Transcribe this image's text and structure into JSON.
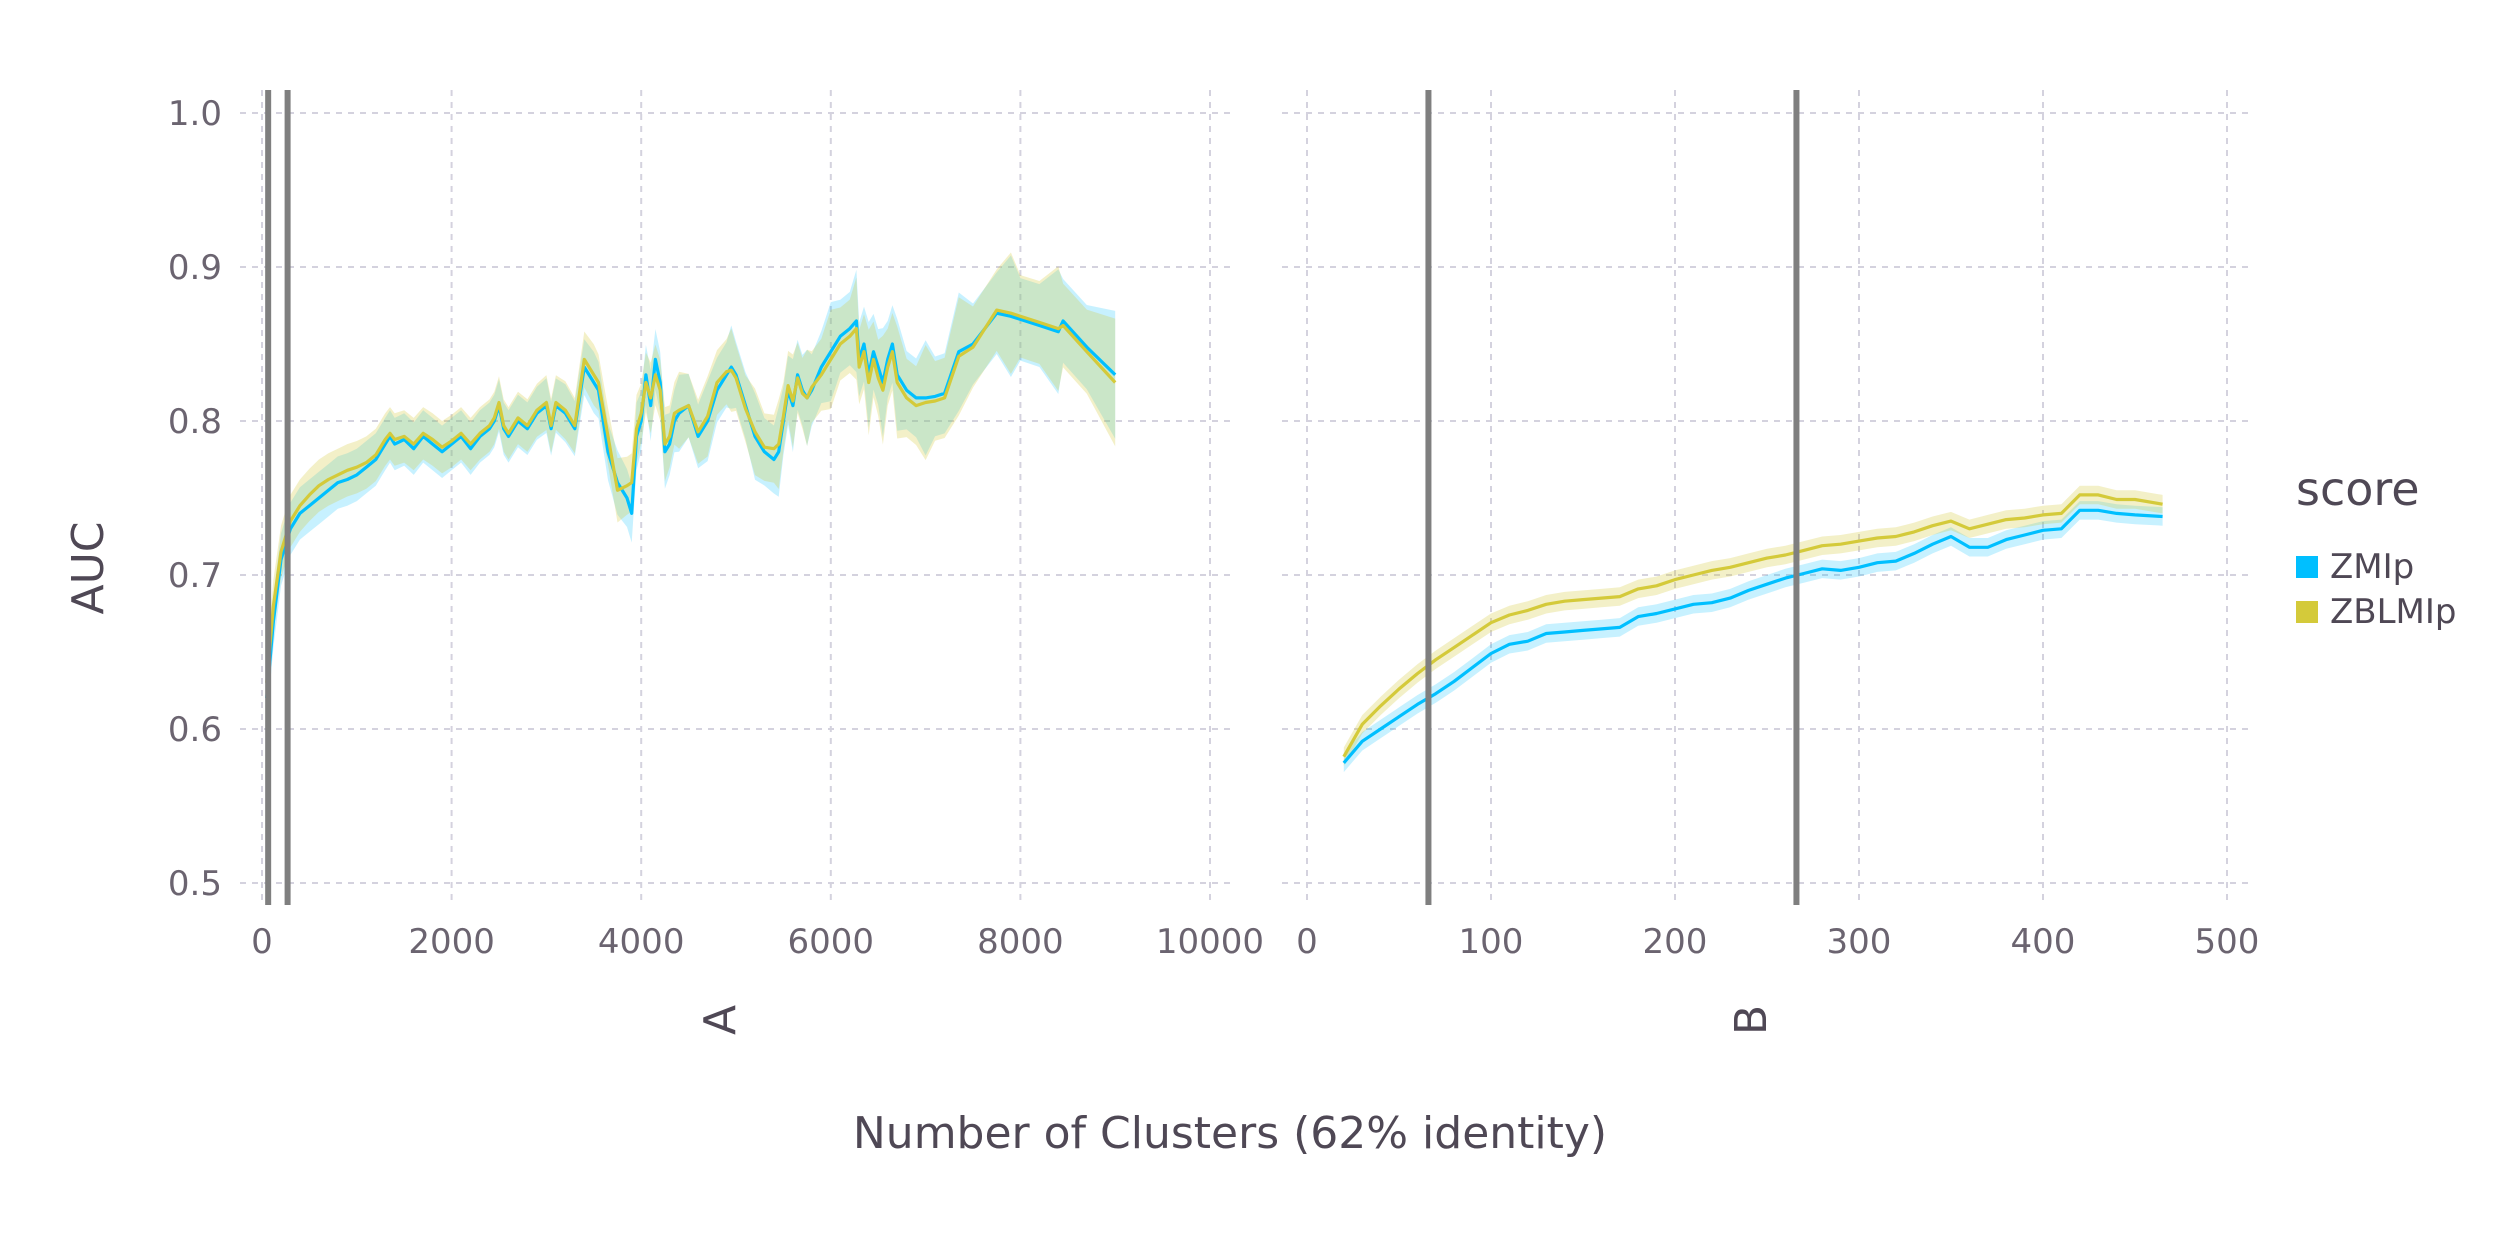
{
  "chart_data": {
    "type": "line",
    "ylabel": "AUC",
    "xlabel": "Number of Clusters (62% identity)",
    "ylim": [
      0.5,
      1.0
    ],
    "yticks": [
      "0.5",
      "0.6",
      "0.7",
      "0.8",
      "0.9",
      "1.0"
    ],
    "grid": true,
    "legend": {
      "title": "score",
      "placement": "right",
      "entries": [
        {
          "name": "ZMIp",
          "color": "#00bfff"
        },
        {
          "name": "ZBLMIp",
          "color": "#d4ca3a"
        }
      ]
    },
    "panels": [
      {
        "label": "A",
        "xlim": [
          0,
          10000
        ],
        "xticks": [
          "0",
          "2000",
          "4000",
          "6000",
          "8000",
          "10000"
        ],
        "vlines": [
          65,
          270
        ],
        "series": [
          {
            "name": "ZMIp",
            "x": [
              50,
              120,
              200,
              300,
              400,
              500,
              600,
              700,
              800,
              900,
              1000,
              1100,
              1200,
              1300,
              1350,
              1400,
              1500,
              1600,
              1700,
              1800,
              1900,
              2000,
              2100,
              2200,
              2300,
              2400,
              2450,
              2500,
              2550,
              2600,
              2700,
              2800,
              2900,
              3000,
              3050,
              3100,
              3200,
              3300,
              3400,
              3500,
              3550,
              3650,
              3750,
              3850,
              3900,
              3950,
              4000,
              4050,
              4100,
              4150,
              4200,
              4250,
              4300,
              4350,
              4400,
              4500,
              4600,
              4700,
              4800,
              4900,
              4950,
              5000,
              5100,
              5200,
              5300,
              5400,
              5450,
              5500,
              5550,
              5600,
              5650,
              5700,
              5750,
              5800,
              5900,
              6000,
              6100,
              6200,
              6270,
              6300,
              6350,
              6400,
              6450,
              6500,
              6550,
              6600,
              6650,
              6700,
              6800,
              6900,
              7000,
              7100,
              7200,
              7350,
              7500,
              7750,
              7900,
              8000,
              8200,
              8400,
              8450,
              8700,
              9000
            ],
            "y": [
              0.62,
              0.67,
              0.71,
              0.73,
              0.74,
              0.745,
              0.75,
              0.755,
              0.76,
              0.762,
              0.765,
              0.77,
              0.775,
              0.785,
              0.79,
              0.785,
              0.788,
              0.782,
              0.79,
              0.785,
              0.78,
              0.785,
              0.79,
              0.782,
              0.79,
              0.795,
              0.8,
              0.81,
              0.795,
              0.79,
              0.8,
              0.795,
              0.805,
              0.81,
              0.795,
              0.81,
              0.805,
              0.795,
              0.835,
              0.825,
              0.82,
              0.78,
              0.76,
              0.75,
              0.74,
              0.79,
              0.8,
              0.83,
              0.81,
              0.84,
              0.825,
              0.78,
              0.785,
              0.8,
              0.805,
              0.81,
              0.79,
              0.8,
              0.82,
              0.83,
              0.835,
              0.83,
              0.81,
              0.79,
              0.78,
              0.775,
              0.78,
              0.8,
              0.82,
              0.81,
              0.83,
              0.82,
              0.815,
              0.82,
              0.835,
              0.845,
              0.855,
              0.86,
              0.865,
              0.84,
              0.85,
              0.83,
              0.845,
              0.835,
              0.825,
              0.84,
              0.85,
              0.83,
              0.82,
              0.815,
              0.815,
              0.816,
              0.818,
              0.845,
              0.85,
              0.87,
              0.868,
              0.866,
              0.862,
              0.858,
              0.865,
              0.848,
              0.83
            ]
          },
          {
            "name": "ZBLMIp",
            "x": [
              50,
              120,
              200,
              300,
              400,
              500,
              600,
              700,
              800,
              900,
              1000,
              1100,
              1200,
              1300,
              1350,
              1400,
              1500,
              1600,
              1700,
              1800,
              1900,
              2000,
              2100,
              2200,
              2300,
              2400,
              2450,
              2500,
              2550,
              2600,
              2700,
              2800,
              2900,
              3000,
              3050,
              3100,
              3200,
              3300,
              3400,
              3500,
              3550,
              3650,
              3750,
              3850,
              3900,
              3950,
              4000,
              4050,
              4100,
              4150,
              4200,
              4250,
              4300,
              4350,
              4400,
              4500,
              4600,
              4700,
              4800,
              4900,
              4950,
              5000,
              5100,
              5200,
              5300,
              5400,
              5450,
              5500,
              5550,
              5600,
              5650,
              5700,
              5750,
              5800,
              5900,
              6000,
              6100,
              6200,
              6270,
              6300,
              6350,
              6400,
              6450,
              6500,
              6550,
              6600,
              6650,
              6700,
              6800,
              6900,
              7000,
              7100,
              7200,
              7350,
              7500,
              7750,
              7900,
              8000,
              8200,
              8400,
              8450,
              8700,
              9000
            ],
            "y": [
              0.63,
              0.68,
              0.715,
              0.735,
              0.745,
              0.752,
              0.758,
              0.762,
              0.765,
              0.768,
              0.77,
              0.773,
              0.778,
              0.788,
              0.792,
              0.788,
              0.79,
              0.785,
              0.792,
              0.788,
              0.783,
              0.787,
              0.792,
              0.785,
              0.792,
              0.797,
              0.802,
              0.812,
              0.797,
              0.792,
              0.802,
              0.797,
              0.807,
              0.812,
              0.797,
              0.812,
              0.807,
              0.797,
              0.84,
              0.83,
              0.825,
              0.79,
              0.755,
              0.758,
              0.76,
              0.795,
              0.805,
              0.825,
              0.815,
              0.83,
              0.82,
              0.785,
              0.79,
              0.805,
              0.807,
              0.81,
              0.793,
              0.803,
              0.825,
              0.832,
              0.833,
              0.828,
              0.808,
              0.793,
              0.783,
              0.782,
              0.785,
              0.803,
              0.823,
              0.813,
              0.828,
              0.818,
              0.815,
              0.822,
              0.83,
              0.84,
              0.85,
              0.855,
              0.86,
              0.835,
              0.845,
              0.825,
              0.84,
              0.828,
              0.82,
              0.835,
              0.845,
              0.825,
              0.815,
              0.81,
              0.812,
              0.813,
              0.815,
              0.842,
              0.848,
              0.872,
              0.87,
              0.868,
              0.864,
              0.86,
              0.862,
              0.845,
              0.825
            ]
          }
        ]
      },
      {
        "label": "B",
        "xlim": [
          0,
          500
        ],
        "xticks": [
          "0",
          "100",
          "200",
          "300",
          "400",
          "500"
        ],
        "vlines": [
          66,
          266
        ],
        "series": [
          {
            "name": "ZMIp",
            "x": [
              20,
              30,
              40,
              50,
              60,
              70,
              80,
              90,
              100,
              110,
              120,
              130,
              140,
              150,
              160,
              170,
              180,
              190,
              200,
              210,
              220,
              230,
              240,
              250,
              260,
              270,
              280,
              290,
              300,
              310,
              320,
              330,
              340,
              350,
              360,
              370,
              380,
              390,
              400,
              410,
              420,
              430,
              440,
              450,
              465
            ],
            "y": [
              0.578,
              0.592,
              0.6,
              0.608,
              0.616,
              0.623,
              0.631,
              0.64,
              0.649,
              0.655,
              0.657,
              0.662,
              0.663,
              0.664,
              0.665,
              0.666,
              0.673,
              0.675,
              0.678,
              0.681,
              0.682,
              0.685,
              0.69,
              0.694,
              0.698,
              0.701,
              0.704,
              0.703,
              0.705,
              0.708,
              0.709,
              0.714,
              0.72,
              0.725,
              0.718,
              0.718,
              0.723,
              0.726,
              0.729,
              0.73,
              0.742,
              0.742,
              0.74,
              0.739,
              0.738
            ]
          },
          {
            "name": "ZBLMIp",
            "x": [
              20,
              30,
              40,
              50,
              60,
              70,
              80,
              90,
              100,
              110,
              120,
              130,
              140,
              150,
              160,
              170,
              180,
              190,
              200,
              210,
              220,
              230,
              240,
              250,
              260,
              270,
              280,
              290,
              300,
              310,
              320,
              330,
              340,
              350,
              360,
              370,
              380,
              390,
              400,
              410,
              420,
              430,
              440,
              450,
              465
            ],
            "y": [
              0.582,
              0.603,
              0.615,
              0.626,
              0.636,
              0.645,
              0.653,
              0.661,
              0.669,
              0.674,
              0.677,
              0.681,
              0.683,
              0.684,
              0.685,
              0.686,
              0.691,
              0.693,
              0.697,
              0.7,
              0.703,
              0.705,
              0.708,
              0.711,
              0.713,
              0.716,
              0.719,
              0.72,
              0.722,
              0.724,
              0.725,
              0.728,
              0.732,
              0.735,
              0.73,
              0.733,
              0.736,
              0.737,
              0.739,
              0.74,
              0.752,
              0.752,
              0.749,
              0.749,
              0.746
            ]
          }
        ]
      }
    ]
  }
}
